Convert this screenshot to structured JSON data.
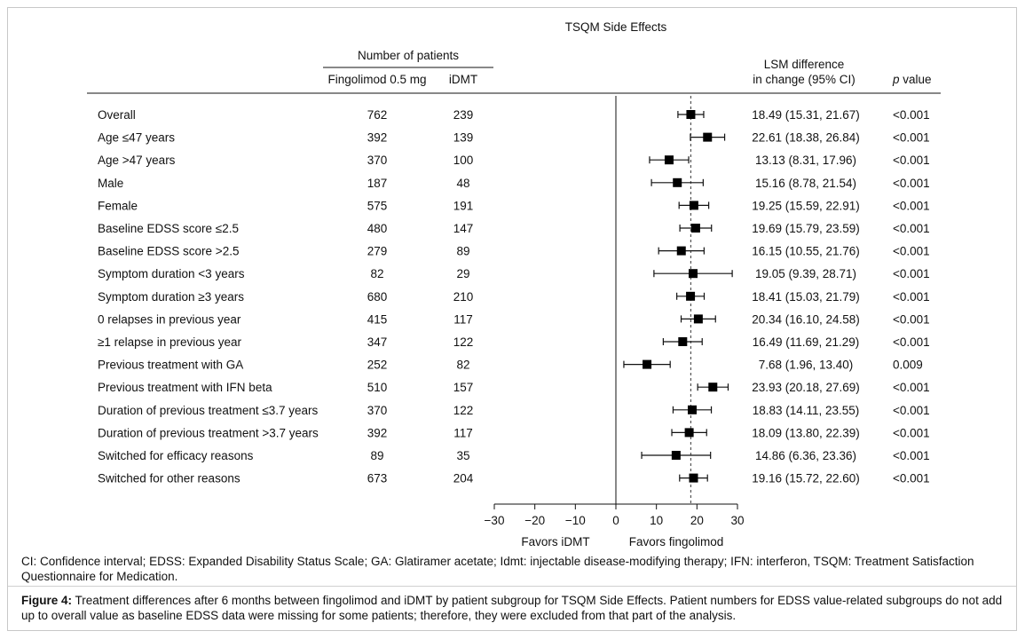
{
  "chart_data": {
    "type": "forest",
    "title": "TSQM Side Effects",
    "group_header": "Number of patients",
    "columns": {
      "fingolimod": "Fingolimod 0.5 mg",
      "idmt": "iDMT",
      "lsm_line1": "LSM difference",
      "lsm_line2": "in change (95% CI)",
      "p_italic": "p",
      "p_rest": " value"
    },
    "reference_line": 18.49,
    "xlim": [
      -30,
      30
    ],
    "xticks": [
      "−30",
      "−20",
      "−10",
      "0",
      "10",
      "20",
      "30"
    ],
    "xtick_values": [
      -30,
      -20,
      -10,
      0,
      10,
      20,
      30
    ],
    "favors_left": "Favors iDMT",
    "favors_right": "Favors fingolimod",
    "rows": [
      {
        "label": "Overall",
        "n_fingo": "762",
        "n_idmt": "239",
        "est": 18.49,
        "lo": 15.31,
        "hi": 21.67,
        "ci_text": "18.49 (15.31, 21.67)",
        "p": "<0.001"
      },
      {
        "label": "Age ≤47 years",
        "n_fingo": "392",
        "n_idmt": "139",
        "est": 22.61,
        "lo": 18.38,
        "hi": 26.84,
        "ci_text": "22.61 (18.38, 26.84)",
        "p": "<0.001"
      },
      {
        "label": "Age >47 years",
        "n_fingo": "370",
        "n_idmt": "100",
        "est": 13.13,
        "lo": 8.31,
        "hi": 17.96,
        "ci_text": "13.13 (8.31, 17.96)",
        "p": "<0.001"
      },
      {
        "label": "Male",
        "n_fingo": "187",
        "n_idmt": "48",
        "est": 15.16,
        "lo": 8.78,
        "hi": 21.54,
        "ci_text": "15.16 (8.78, 21.54)",
        "p": "<0.001"
      },
      {
        "label": "Female",
        "n_fingo": "575",
        "n_idmt": "191",
        "est": 19.25,
        "lo": 15.59,
        "hi": 22.91,
        "ci_text": "19.25 (15.59, 22.91)",
        "p": "<0.001"
      },
      {
        "label": "Baseline EDSS score ≤2.5",
        "n_fingo": "480",
        "n_idmt": "147",
        "est": 19.69,
        "lo": 15.79,
        "hi": 23.59,
        "ci_text": "19.69 (15.79, 23.59)",
        "p": "<0.001"
      },
      {
        "label": "Baseline EDSS score >2.5",
        "n_fingo": "279",
        "n_idmt": "89",
        "est": 16.15,
        "lo": 10.55,
        "hi": 21.76,
        "ci_text": "16.15 (10.55, 21.76)",
        "p": "<0.001"
      },
      {
        "label": "Symptom duration <3 years",
        "n_fingo": "82",
        "n_idmt": "29",
        "est": 19.05,
        "lo": 9.39,
        "hi": 28.71,
        "ci_text": "19.05 (9.39, 28.71)",
        "p": "<0.001"
      },
      {
        "label": "Symptom duration ≥3 years",
        "n_fingo": "680",
        "n_idmt": "210",
        "est": 18.41,
        "lo": 15.03,
        "hi": 21.79,
        "ci_text": "18.41 (15.03, 21.79)",
        "p": "<0.001"
      },
      {
        "label": "0 relapses in previous year",
        "n_fingo": "415",
        "n_idmt": "117",
        "est": 20.34,
        "lo": 16.1,
        "hi": 24.58,
        "ci_text": "20.34 (16.10, 24.58)",
        "p": "<0.001"
      },
      {
        "label": "≥1 relapse in previous year",
        "n_fingo": "347",
        "n_idmt": "122",
        "est": 16.49,
        "lo": 11.69,
        "hi": 21.29,
        "ci_text": "16.49 (11.69, 21.29)",
        "p": "<0.001"
      },
      {
        "label": "Previous treatment with GA",
        "n_fingo": "252",
        "n_idmt": "82",
        "est": 7.68,
        "lo": 1.96,
        "hi": 13.4,
        "ci_text": "7.68 (1.96, 13.40)",
        "p": "0.009"
      },
      {
        "label": "Previous treatment with IFN beta",
        "n_fingo": "510",
        "n_idmt": "157",
        "est": 23.93,
        "lo": 20.18,
        "hi": 27.69,
        "ci_text": "23.93 (20.18, 27.69)",
        "p": "<0.001"
      },
      {
        "label": "Duration of previous treatment ≤3.7 years",
        "n_fingo": "370",
        "n_idmt": "122",
        "est": 18.83,
        "lo": 14.11,
        "hi": 23.55,
        "ci_text": "18.83 (14.11, 23.55)",
        "p": "<0.001"
      },
      {
        "label": "Duration of previous treatment >3.7 years",
        "n_fingo": "392",
        "n_idmt": "117",
        "est": 18.09,
        "lo": 13.8,
        "hi": 22.39,
        "ci_text": "18.09 (13.80, 22.39)",
        "p": "<0.001"
      },
      {
        "label": "Switched for efficacy reasons",
        "n_fingo": "89",
        "n_idmt": "35",
        "est": 14.86,
        "lo": 6.36,
        "hi": 23.36,
        "ci_text": "14.86 (6.36, 23.36)",
        "p": "<0.001"
      },
      {
        "label": "Switched for other reasons",
        "n_fingo": "673",
        "n_idmt": "204",
        "est": 19.16,
        "lo": 15.72,
        "hi": 22.6,
        "ci_text": "19.16 (15.72, 22.60)",
        "p": "<0.001"
      }
    ]
  },
  "captions": {
    "abbreviations": "CI: Confidence interval; EDSS: Expanded Disability Status Scale; GA: Glatiramer acetate; Idmt: injectable disease-modifying therapy; IFN: interferon, TSQM: Treatment Satisfaction Questionnaire for Medication.",
    "figure_label": "Figure 4:",
    "figure_text": " Treatment differences after 6 months between fingolimod and iDMT by patient subgroup for TSQM Side Effects. Patient numbers for EDSS value-related subgroups do not add up to overall value as baseline EDSS data were missing for some patients; therefore, they were excluded from that part of the analysis."
  },
  "colors": {
    "ink": "#111111",
    "marker": "#000000",
    "reference": "#555555",
    "frame": "#c8c8c8"
  }
}
